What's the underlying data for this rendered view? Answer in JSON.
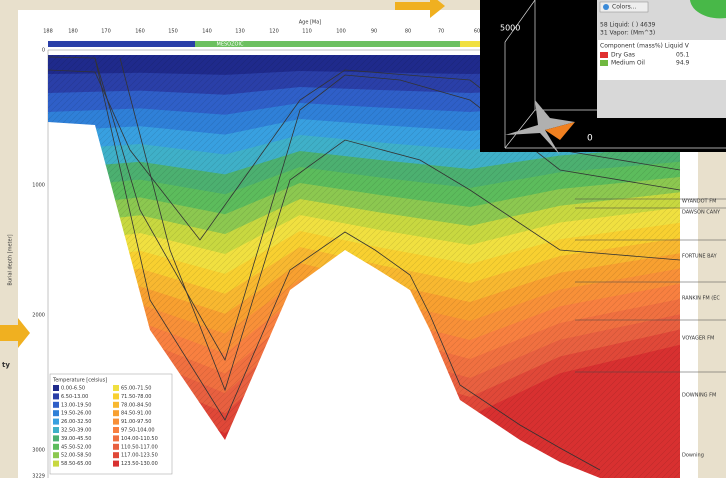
{
  "age_axis": {
    "title": "Age [Ma]",
    "ticks": [
      "188",
      "180",
      "170",
      "160",
      "150",
      "140",
      "130",
      "120",
      "110",
      "100",
      "90",
      "80",
      "70",
      "60"
    ]
  },
  "era_bar": "MESOZOIC",
  "depth_axis": {
    "title": "Burial depth [meter]",
    "ticks": [
      "0",
      "1000",
      "2000",
      "3000",
      "3229"
    ]
  },
  "legend": {
    "title": "Temperature [celsius]",
    "entries": [
      {
        "label": "0.00-6.50",
        "color": "#1f2a8c"
      },
      {
        "label": "6.50-13.00",
        "color": "#2a3fa8"
      },
      {
        "label": "13.00-19.50",
        "color": "#2f5fc8"
      },
      {
        "label": "19.50-26.00",
        "color": "#2f80d8"
      },
      {
        "label": "26.00-32.50",
        "color": "#38a0e0"
      },
      {
        "label": "32.50-39.00",
        "color": "#3fb0c8"
      },
      {
        "label": "39.00-45.50",
        "color": "#4cb070"
      },
      {
        "label": "45.50-52.00",
        "color": "#5cbc5c"
      },
      {
        "label": "52.00-58.50",
        "color": "#8cc850"
      },
      {
        "label": "58.50-65.00",
        "color": "#c8d840"
      },
      {
        "label": "65.00-71.50",
        "color": "#f0e040"
      },
      {
        "label": "71.50-78.00",
        "color": "#f8d030"
      },
      {
        "label": "78.00-84.50",
        "color": "#f8b830"
      },
      {
        "label": "84.50-91.00",
        "color": "#f8a030"
      },
      {
        "label": "91.00-97.50",
        "color": "#f89038"
      },
      {
        "label": "97.50-104.00",
        "color": "#f88040"
      },
      {
        "label": "104.00-110.50",
        "color": "#f07040"
      },
      {
        "label": "110.50-117.00",
        "color": "#e86040"
      },
      {
        "label": "117.00-123.50",
        "color": "#e04838"
      },
      {
        "label": "123.50-130.00",
        "color": "#d83030"
      }
    ]
  },
  "formations": [
    "WYANDOT FM",
    "DAWSON CANY",
    "FORTUNE BAY",
    "RANKIN FM (EC",
    "VOYAGER FM",
    "DOWNING FM",
    "Downing"
  ],
  "inset": {
    "button": "Colors...",
    "rows": [
      "58  Liquid:   (        )      4639",
      "31  Vapor:    (Mm^3)"
    ],
    "header": "Component     (mass%) Liquid V",
    "components": [
      {
        "name": "Dry Gas",
        "color": "#e03030",
        "value": "05.1"
      },
      {
        "name": "Medium Oil",
        "color": "#70b840",
        "value": "94.9"
      }
    ],
    "axis_labels": [
      "5000",
      "0"
    ]
  },
  "side_label": "ty"
}
